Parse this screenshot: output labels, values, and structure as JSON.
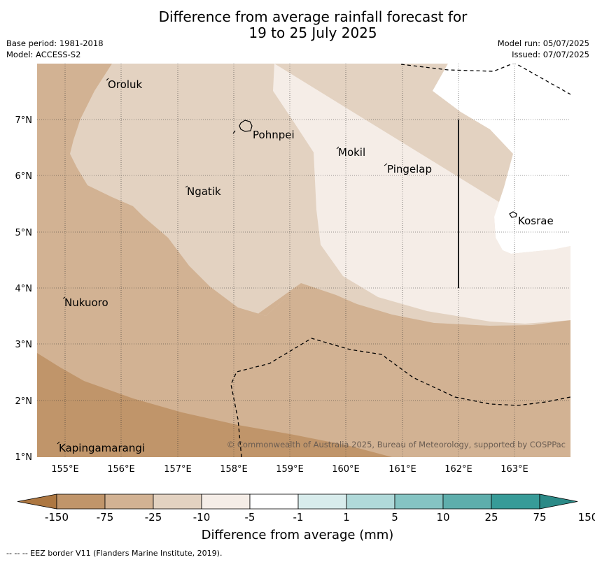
{
  "title_line1": "Difference from average rainfall forecast for",
  "title_line2": "19 to 25 July 2025",
  "meta_left": [
    "Base period: 1981-2018",
    "Model: ACCESS-S2"
  ],
  "meta_right": [
    "Model run: 05/07/2025",
    "Issued: 07/07/2025"
  ],
  "lon_labels": [
    "155°E",
    "156°E",
    "157°E",
    "158°E",
    "159°E",
    "160°E",
    "161°E",
    "162°E",
    "163°E"
  ],
  "lat_labels": [
    "7°N",
    "6°N",
    "5°N",
    "4°N",
    "3°N",
    "2°N",
    "1°N"
  ],
  "places": [
    "Oroluk",
    "Pohnpei",
    "Mokil",
    "Pingelap",
    "Ngatik",
    "Kosrae",
    "Nukuoro",
    "Kapingamarangi"
  ],
  "copyright": "© Commonwealth of Australia 2025, Bureau of Meteorology, supported by COSPPac",
  "colorbar": {
    "labels": [
      "-150",
      "-75",
      "-25",
      "-10",
      "-5",
      "-1",
      "1",
      "5",
      "10",
      "25",
      "75",
      "150"
    ],
    "colors": [
      "#ad7741",
      "#c0956a",
      "#d2b293",
      "#e3d2c1",
      "#f5ede7",
      "#ffffff",
      "#d8ecec",
      "#b0d9d9",
      "#85c4c3",
      "#5eaeac",
      "#379b98",
      "#2b8a87"
    ],
    "title": "Difference from average (mm)"
  },
  "footer": "--  --  -- EEZ border V11 (Flanders Marine Institute, 2019)."
}
